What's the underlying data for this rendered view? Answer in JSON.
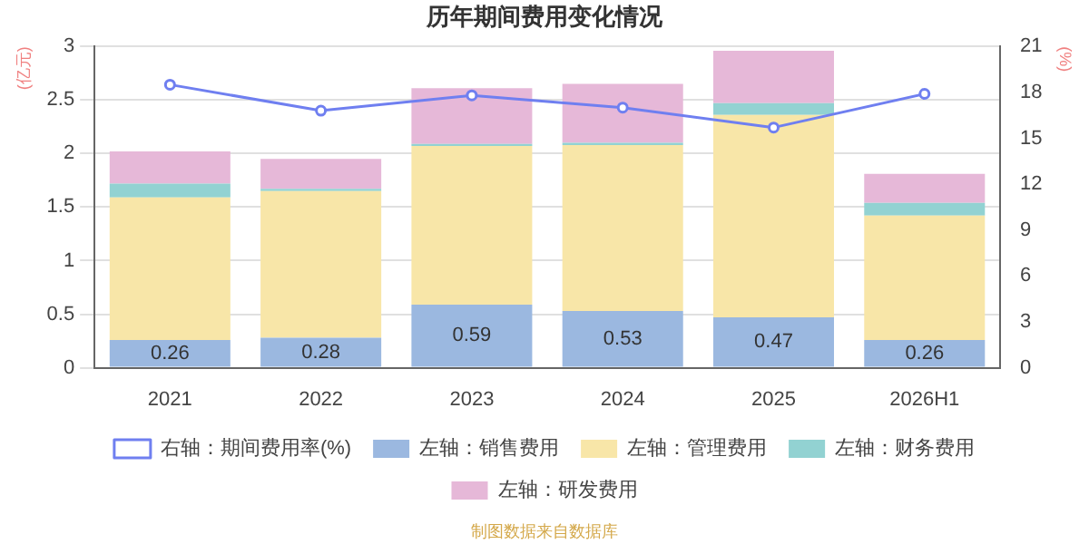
{
  "chart_data": {
    "type": "bar",
    "title": "历年期间费用变化情况",
    "ylabel": "(亿元)",
    "y2label": "(%)",
    "categories": [
      "2021",
      "2022",
      "2023",
      "2024",
      "2025",
      "2026H1"
    ],
    "stacked": true,
    "series": [
      {
        "name": "左轴：销售费用",
        "color": "#9bb8e0",
        "values": [
          0.26,
          0.28,
          0.59,
          0.53,
          0.47,
          0.26
        ],
        "value_labels": [
          "0.26",
          "0.28",
          "0.59",
          "0.53",
          "0.47",
          "0.26"
        ]
      },
      {
        "name": "左轴：管理费用",
        "color": "#f8e6a8",
        "values": [
          1.33,
          1.37,
          1.48,
          1.55,
          1.89,
          1.16
        ]
      },
      {
        "name": "左轴：财务费用",
        "color": "#92d2d2",
        "values": [
          0.13,
          0.02,
          0.02,
          0.02,
          0.11,
          0.12
        ]
      },
      {
        "name": "左轴：研发费用",
        "color": "#e6b8d8",
        "values": [
          0.3,
          0.28,
          0.52,
          0.55,
          0.49,
          0.27
        ]
      },
      {
        "name": "右轴：期间费用率(%)",
        "type": "line",
        "axis": "y2",
        "color": "#6f7ff0",
        "marker": "circle",
        "values": [
          18.5,
          16.8,
          17.8,
          17.0,
          15.7,
          17.9
        ]
      }
    ],
    "ylim": [
      0,
      3
    ],
    "yticks": [
      0,
      0.5,
      1,
      1.5,
      2,
      2.5,
      3
    ],
    "y2lim": [
      0,
      21
    ],
    "y2ticks": [
      0,
      3,
      6,
      9,
      12,
      15,
      18,
      21
    ],
    "grid": "y",
    "legend": "bottom",
    "annotations": [
      "制图数据来自数据库"
    ]
  }
}
